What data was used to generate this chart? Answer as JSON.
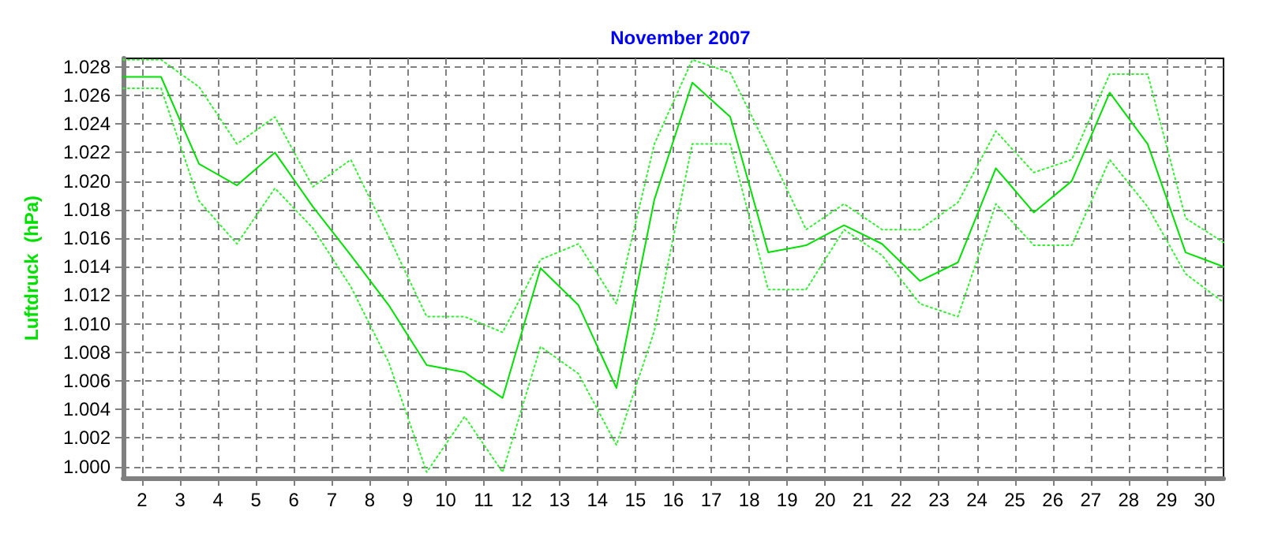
{
  "chart_data": {
    "type": "line",
    "title": "November 2007",
    "ylabel": "Luftdruck  (hPa)",
    "x": [
      1.5,
      2.5,
      3.5,
      4.5,
      5.5,
      6.5,
      7.5,
      8.5,
      9.5,
      10.5,
      11.5,
      12.5,
      13.5,
      14.5,
      15.5,
      16.5,
      17.5,
      18.5,
      19.5,
      20.5,
      21.5,
      22.5,
      23.5,
      24.5,
      25.5,
      26.5,
      27.5,
      28.5,
      29.5,
      30.5
    ],
    "series": [
      {
        "color": "#00e000",
        "values": [
          1.0273,
          1.0273,
          1.0212,
          1.0197,
          1.022,
          1.0182,
          1.0148,
          1.0113,
          1.0071,
          1.0066,
          1.0048,
          1.0139,
          1.0113,
          1.0055,
          1.0187,
          1.0269,
          1.0245,
          1.015,
          1.0155,
          1.0169,
          1.0156,
          1.013,
          1.0143,
          1.0209,
          1.0178,
          1.02,
          1.0262,
          1.0226,
          1.015,
          1.014
        ]
      },
      {
        "color": "#33f033",
        "line_style": "dotted",
        "values": [
          1.0285,
          1.0285,
          1.0266,
          1.0226,
          1.0245,
          1.0196,
          1.0215,
          1.0161,
          1.0105,
          1.0105,
          1.0094,
          1.0145,
          1.0156,
          1.0114,
          1.0226,
          1.0285,
          1.0276,
          1.0222,
          1.0166,
          1.0184,
          1.0166,
          1.0166,
          1.0185,
          1.0235,
          1.0206,
          1.0215,
          1.0275,
          1.0275,
          1.0174,
          1.0157
        ]
      },
      {
        "color": "#33f033",
        "line_style": "dotted",
        "values": [
          1.0265,
          1.0265,
          1.0186,
          1.0156,
          1.0195,
          1.0167,
          1.0126,
          1.0073,
          0.9996,
          1.0035,
          0.9996,
          1.0084,
          1.0065,
          1.0015,
          1.0095,
          1.0226,
          1.0226,
          1.0124,
          1.0124,
          1.0166,
          1.0148,
          1.0114,
          1.0105,
          1.0184,
          1.0155,
          1.0155,
          1.0215,
          1.0182,
          1.0135,
          1.0115
        ]
      }
    ],
    "xlim": [
      1.5,
      30.5
    ],
    "xticks": [
      2,
      3,
      4,
      5,
      6,
      7,
      8,
      9,
      10,
      11,
      12,
      13,
      14,
      15,
      16,
      17,
      18,
      19,
      20,
      21,
      22,
      23,
      24,
      25,
      26,
      27,
      28,
      29,
      30
    ],
    "ylim": [
      0.9992,
      1.0286
    ],
    "yticks": [
      {
        "value": 1.0,
        "label": "1.000"
      },
      1.002,
      1.004,
      1.006,
      1.008,
      {
        "value": 1.01,
        "label": "1.010"
      },
      1.012,
      1.014,
      1.016,
      1.018,
      {
        "value": 1.02,
        "label": "1.020"
      },
      1.022,
      1.024,
      1.026,
      1.028
    ],
    "grid": true,
    "marker": "none",
    "line_style": "solid"
  }
}
